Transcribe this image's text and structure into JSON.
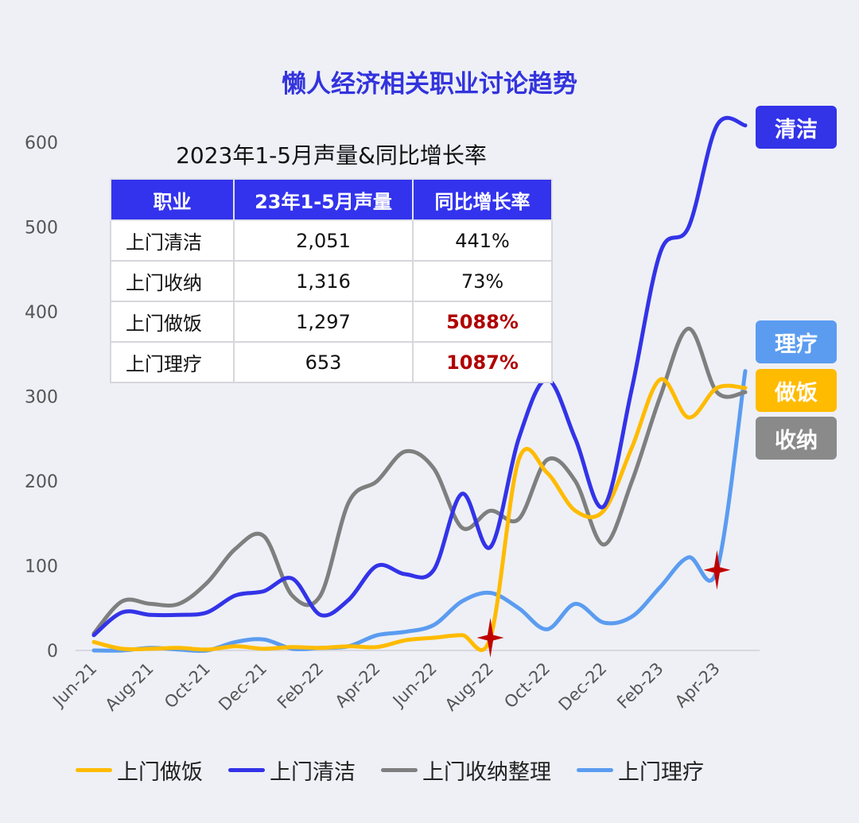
{
  "title": "懒人经济相关职业讨论趋势",
  "table": {
    "title": "2023年1-5月声量&同比增长率",
    "headers": [
      "职业",
      "23年1-5月声量",
      "同比增长率"
    ],
    "rows": [
      {
        "name": "上门清洁",
        "volume": "2,051",
        "growth": "441%",
        "highlight": false
      },
      {
        "name": "上门收纳",
        "volume": "1,316",
        "growth": "73%",
        "highlight": false
      },
      {
        "name": "上门做饭",
        "volume": "1,297",
        "growth": "5088%",
        "highlight": true
      },
      {
        "name": "上门理疗",
        "volume": "653",
        "growth": "1087%",
        "highlight": true
      }
    ]
  },
  "badges": [
    {
      "label": "清洁",
      "color": "#3333e8"
    },
    {
      "label": "理疗",
      "color": "#5b9cf0"
    },
    {
      "label": "做饭",
      "color": "#ffbb00"
    },
    {
      "label": "收纳",
      "color": "#8a8a8a"
    }
  ],
  "chart_data": {
    "type": "line",
    "categories": [
      "Jun-21",
      "Jul-21",
      "Aug-21",
      "Sep-21",
      "Oct-21",
      "Nov-21",
      "Dec-21",
      "Jan-22",
      "Feb-22",
      "Mar-22",
      "Apr-22",
      "May-22",
      "Jun-22",
      "Jul-22",
      "Aug-22",
      "Sep-22",
      "Oct-22",
      "Nov-22",
      "Dec-22",
      "Jan-23",
      "Feb-23",
      "Mar-23",
      "Apr-23",
      "May-23"
    ],
    "x_tick_labels": [
      "Jun-21",
      "Aug-21",
      "Oct-21",
      "Dec-21",
      "Feb-22",
      "Apr-22",
      "Jun-22",
      "Aug-22",
      "Oct-22",
      "Dec-22",
      "Feb-23",
      "Apr-23"
    ],
    "ylim": [
      0,
      650
    ],
    "y_ticks": [
      0,
      100,
      200,
      300,
      400,
      500,
      600
    ],
    "series": [
      {
        "name": "上门做饭",
        "color": "#ffbb00",
        "values": [
          10,
          2,
          2,
          3,
          1,
          5,
          2,
          4,
          3,
          5,
          4,
          12,
          15,
          18,
          15,
          225,
          210,
          165,
          165,
          240,
          320,
          275,
          310,
          310
        ]
      },
      {
        "name": "上门清洁",
        "color": "#3333e8",
        "values": [
          18,
          45,
          42,
          42,
          45,
          65,
          70,
          85,
          42,
          60,
          100,
          90,
          95,
          185,
          122,
          250,
          320,
          250,
          170,
          310,
          470,
          500,
          620,
          620
        ]
      },
      {
        "name": "上门收纳整理",
        "color": "#7f7f7f",
        "values": [
          20,
          58,
          55,
          55,
          80,
          120,
          135,
          65,
          65,
          175,
          200,
          235,
          215,
          145,
          165,
          155,
          225,
          200,
          125,
          200,
          300,
          380,
          305,
          305
        ]
      },
      {
        "name": "上门理疗",
        "color": "#5b9cf0",
        "values": [
          0,
          0,
          3,
          1,
          0,
          10,
          13,
          2,
          3,
          5,
          18,
          22,
          30,
          58,
          68,
          50,
          25,
          55,
          33,
          40,
          75,
          110,
          95,
          330
        ]
      }
    ],
    "markers": [
      {
        "series": "上门做饭",
        "category": "Aug-22",
        "value": 15,
        "color": "#c00000"
      },
      {
        "series": "上门理疗",
        "category": "Apr-23",
        "value": 95,
        "color": "#c00000"
      }
    ],
    "grid": false,
    "legend_position": "bottom"
  }
}
